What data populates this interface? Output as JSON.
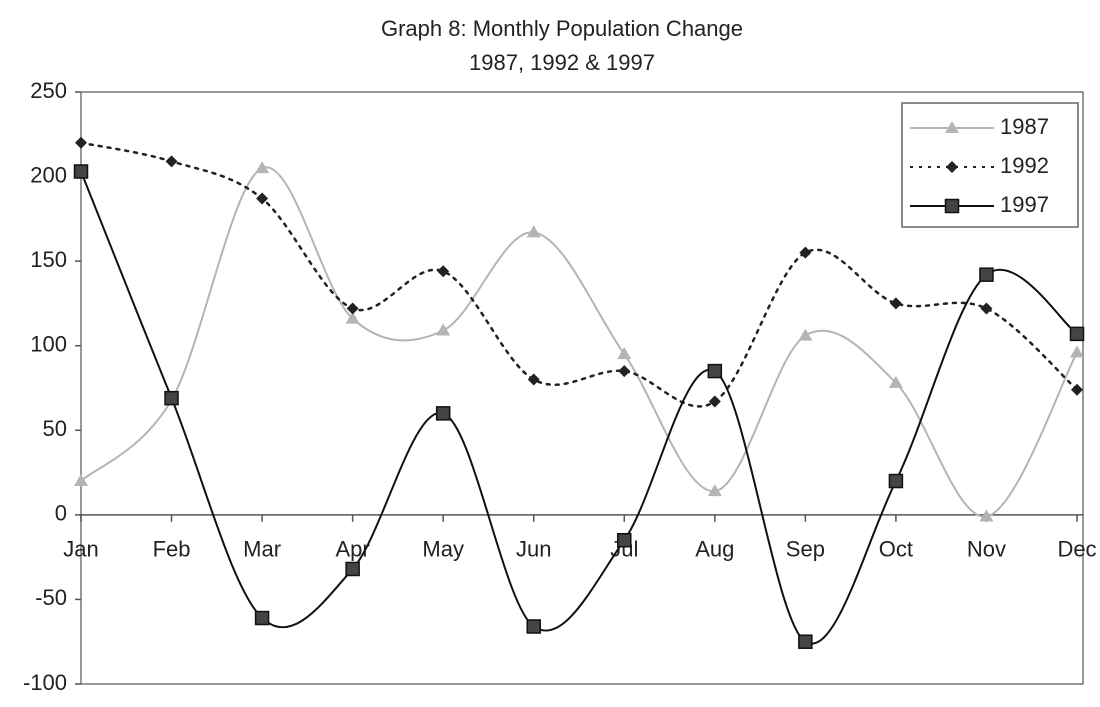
{
  "chart_data": {
    "type": "line",
    "title": "Graph 8: Monthly Population Change",
    "subtitle": "1987, 1992 & 1997",
    "categories": [
      "Jan",
      "Feb",
      "Mar",
      "Apr",
      "May",
      "Jun",
      "Jul",
      "Aug",
      "Sep",
      "Oct",
      "Nov",
      "Dec"
    ],
    "series": [
      {
        "name": "1987",
        "color": "#b4b4b4",
        "dash": "solid",
        "marker": "triangle",
        "values": [
          20,
          68,
          205,
          116,
          109,
          167,
          95,
          14,
          106,
          78,
          -1,
          96
        ]
      },
      {
        "name": "1992",
        "color": "#222222",
        "dash": "dotted",
        "marker": "diamond",
        "values": [
          220,
          209,
          187,
          122,
          144,
          80,
          85,
          67,
          155,
          125,
          122,
          74
        ]
      },
      {
        "name": "1997",
        "color": "#111111",
        "dash": "solid",
        "marker": "square",
        "values": [
          203,
          69,
          -61,
          -32,
          60,
          -66,
          -15,
          85,
          -75,
          20,
          142,
          107
        ]
      }
    ],
    "ylim": [
      -100,
      250
    ],
    "yticks": [
      -100,
      -50,
      0,
      50,
      100,
      150,
      200,
      250
    ],
    "smooth": true,
    "grid": false,
    "legend": "top-right"
  }
}
